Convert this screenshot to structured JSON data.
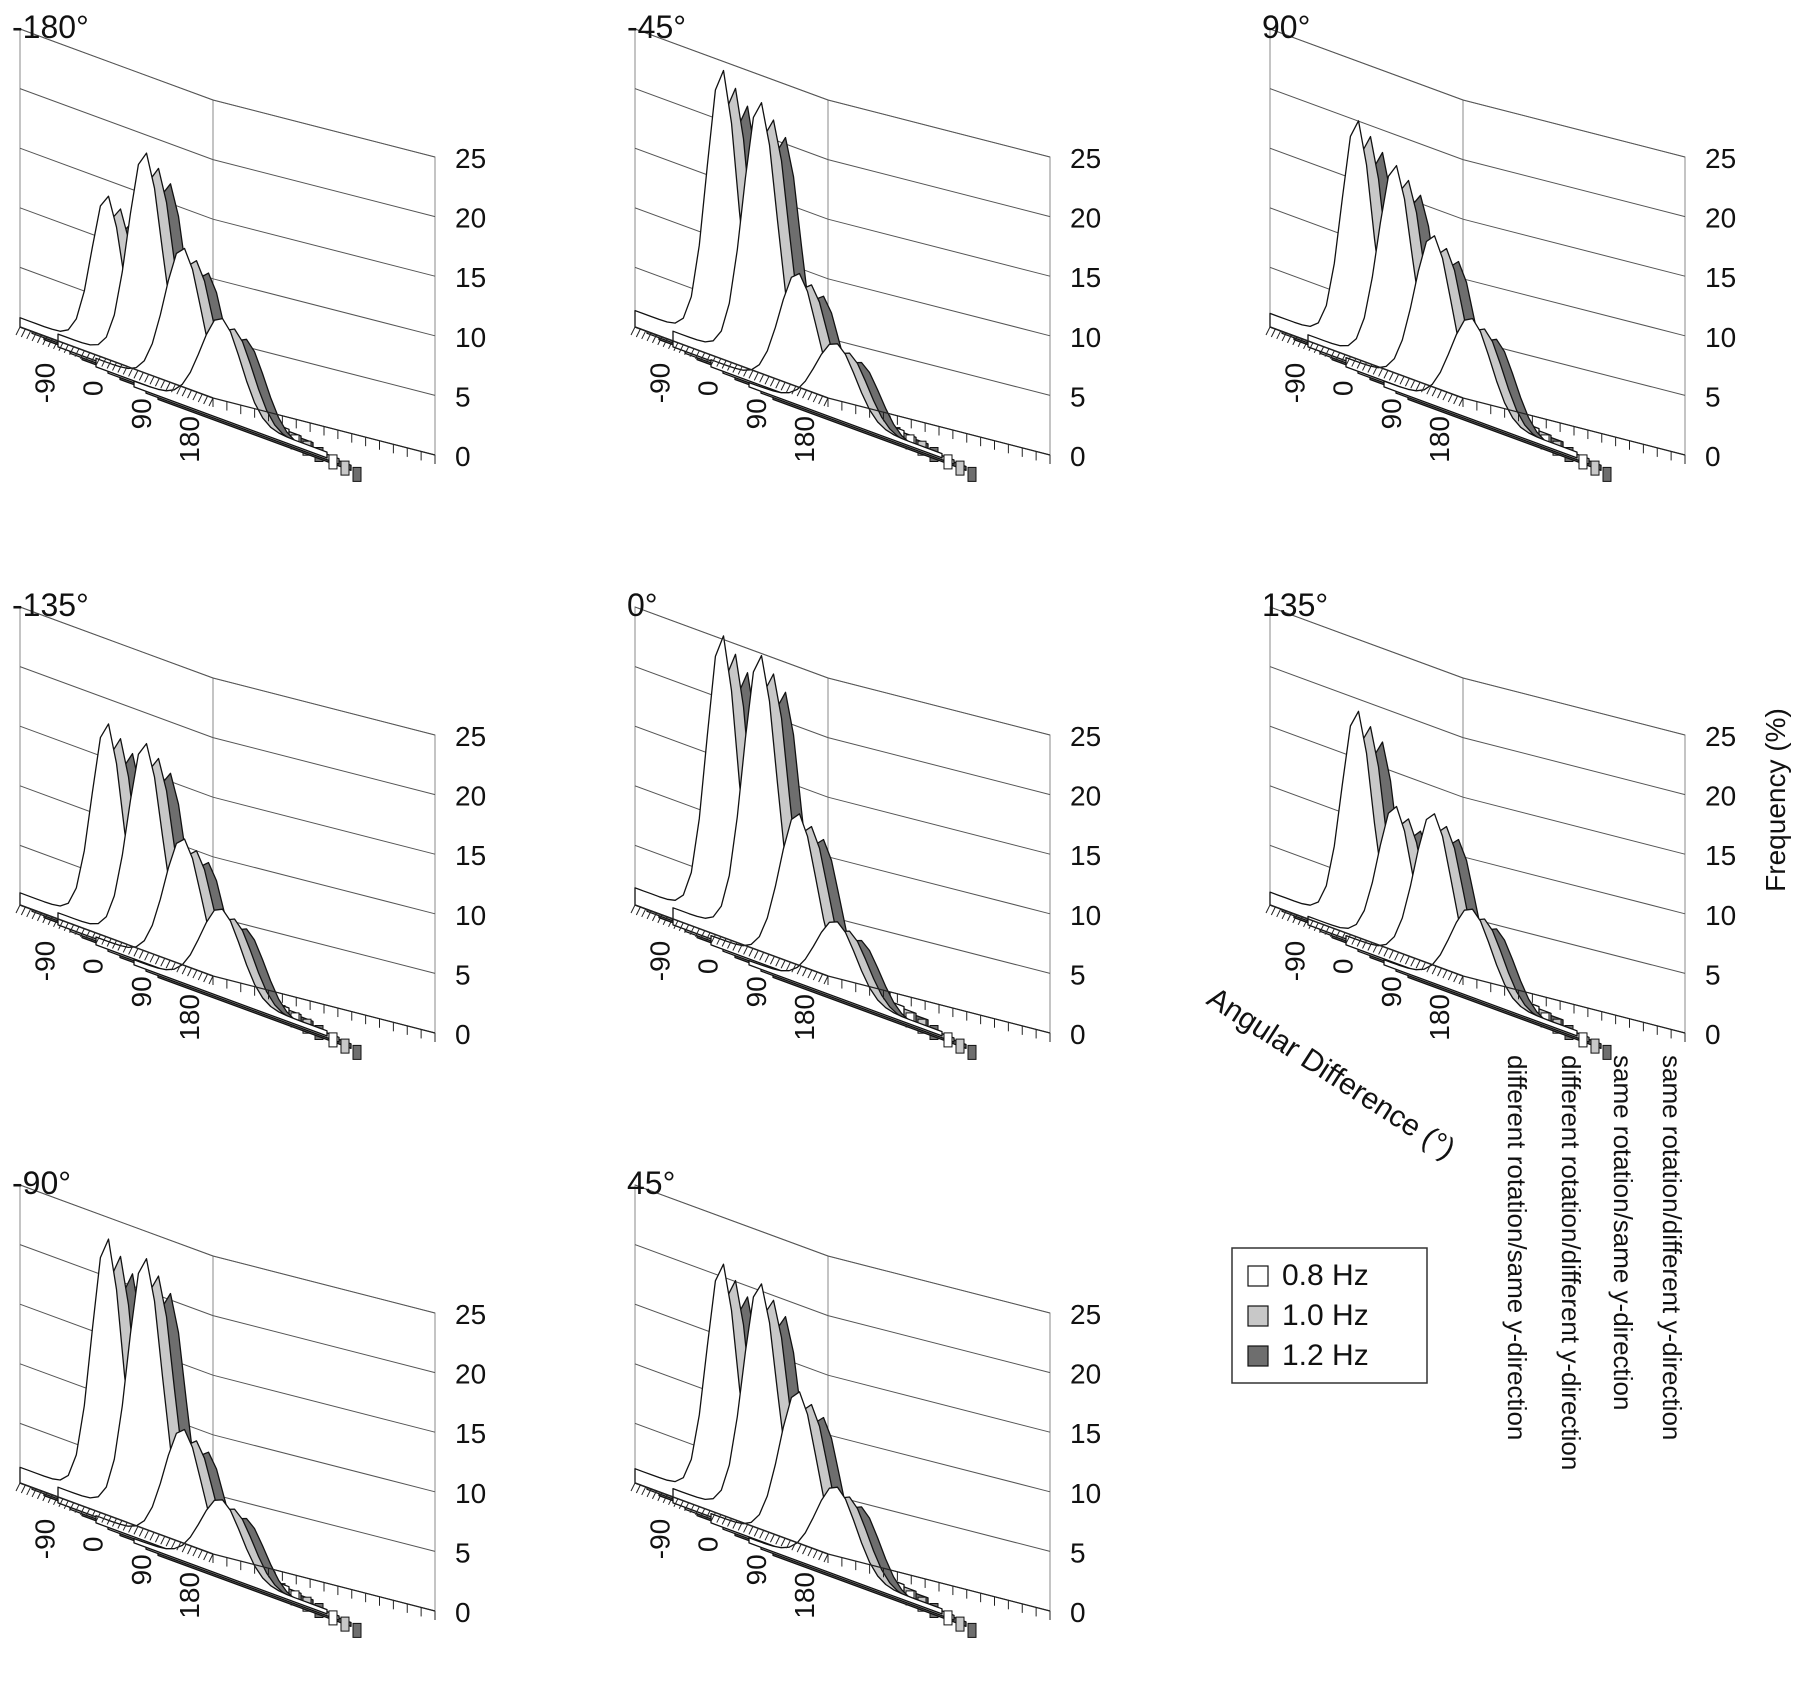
{
  "figure": {
    "angular_axis_label": "Angular Difference (°)",
    "frequency_axis_label": "Frequency (%)",
    "legend": [
      {
        "label": "0.8 Hz",
        "color": "#ffffff"
      },
      {
        "label": "1.0 Hz",
        "color": "#c8c8c8"
      },
      {
        "label": "1.2 Hz",
        "color": "#6e6e6e"
      }
    ]
  },
  "chart_data": [
    {
      "type": "area",
      "title": "-180°",
      "series_depth_labels": [
        "different rotation/same y-direction",
        "different rotation/different y-direction",
        "same rotation/same y-direction",
        "same rotation/different y-direction"
      ],
      "frequencies": [
        "0.8 Hz",
        "1.0 Hz",
        "1.2 Hz"
      ],
      "x": [
        -180,
        -135,
        -90,
        -45,
        0,
        45,
        90,
        135,
        180
      ],
      "x_ticks": [
        -90,
        0,
        90,
        180
      ],
      "z_ticks": [
        0,
        5,
        10,
        15,
        20,
        25
      ],
      "zlim": [
        0,
        25
      ],
      "peaks": [
        13,
        18,
        12,
        8
      ]
    },
    {
      "type": "area",
      "title": "-45°",
      "series_depth_labels": [
        "different rotation/same y-direction",
        "different rotation/different y-direction",
        "same rotation/same y-direction",
        "same rotation/different y-direction"
      ],
      "frequencies": [
        "0.8 Hz",
        "1.0 Hz",
        "1.2 Hz"
      ],
      "x": [
        -180,
        -135,
        -90,
        -45,
        0,
        45,
        90,
        135,
        180
      ],
      "x_ticks": [
        -90,
        0,
        90,
        180
      ],
      "z_ticks": [
        0,
        5,
        10,
        15,
        20,
        25
      ],
      "zlim": [
        0,
        25
      ],
      "peaks": [
        23,
        22,
        10,
        6
      ]
    },
    {
      "type": "area",
      "title": "90°",
      "series_depth_labels": [
        "different rotation/same y-direction",
        "different rotation/different y-direction",
        "same rotation/same y-direction",
        "same rotation/different y-direction"
      ],
      "frequencies": [
        "0.8 Hz",
        "1.0 Hz",
        "1.2 Hz"
      ],
      "x": [
        -180,
        -135,
        -90,
        -45,
        0,
        45,
        90,
        135,
        180
      ],
      "x_ticks": [
        -90,
        0,
        90,
        180
      ],
      "z_ticks": [
        0,
        5,
        10,
        15,
        20,
        25
      ],
      "zlim": [
        0,
        25
      ],
      "peaks": [
        19,
        17,
        13,
        8
      ]
    },
    {
      "type": "area",
      "title": "-135°",
      "series_depth_labels": [
        "different rotation/same y-direction",
        "different rotation/different y-direction",
        "same rotation/same y-direction",
        "same rotation/different y-direction"
      ],
      "frequencies": [
        "0.8 Hz",
        "1.0 Hz",
        "1.2 Hz"
      ],
      "x": [
        -180,
        -135,
        -90,
        -45,
        0,
        45,
        90,
        135,
        180
      ],
      "x_ticks": [
        -90,
        0,
        90,
        180
      ],
      "z_ticks": [
        0,
        5,
        10,
        15,
        20,
        25
      ],
      "zlim": [
        0,
        25
      ],
      "peaks": [
        17,
        17,
        11,
        7
      ]
    },
    {
      "type": "area",
      "title": "0°",
      "series_depth_labels": [
        "different rotation/same y-direction",
        "different rotation/different y-direction",
        "same rotation/same y-direction",
        "same rotation/different y-direction"
      ],
      "frequencies": [
        "0.8 Hz",
        "1.0 Hz",
        "1.2 Hz"
      ],
      "x": [
        -180,
        -135,
        -90,
        -45,
        0,
        45,
        90,
        135,
        180
      ],
      "x_ticks": [
        -90,
        0,
        90,
        180
      ],
      "z_ticks": [
        0,
        5,
        10,
        15,
        20,
        25
      ],
      "zlim": [
        0,
        25
      ],
      "peaks": [
        24,
        24,
        13,
        6
      ]
    },
    {
      "type": "area",
      "title": "135°",
      "series_depth_labels": [
        "different rotation/same y-direction",
        "different rotation/different y-direction",
        "same rotation/same y-direction",
        "same rotation/different y-direction"
      ],
      "frequencies": [
        "0.8 Hz",
        "1.0 Hz",
        "1.2 Hz"
      ],
      "x": [
        -180,
        -135,
        -90,
        -45,
        0,
        45,
        90,
        135,
        180
      ],
      "x_ticks": [
        -90,
        0,
        90,
        180
      ],
      "z_ticks": [
        0,
        5,
        10,
        15,
        20,
        25
      ],
      "zlim": [
        0,
        25
      ],
      "peaks": [
        18,
        12,
        13,
        7
      ]
    },
    {
      "type": "area",
      "title": "-90°",
      "series_depth_labels": [
        "different rotation/same y-direction",
        "different rotation/different y-direction",
        "same rotation/same y-direction",
        "same rotation/different y-direction"
      ],
      "frequencies": [
        "0.8 Hz",
        "1.0 Hz",
        "1.2 Hz"
      ],
      "x": [
        -180,
        -135,
        -90,
        -45,
        0,
        45,
        90,
        135,
        180
      ],
      "x_ticks": [
        -90,
        0,
        90,
        180
      ],
      "z_ticks": [
        0,
        5,
        10,
        15,
        20,
        25
      ],
      "zlim": [
        0,
        25
      ],
      "peaks": [
        22,
        22,
        10,
        6
      ]
    },
    {
      "type": "area",
      "title": "45°",
      "series_depth_labels": [
        "different rotation/same y-direction",
        "different rotation/different y-direction",
        "same rotation/same y-direction",
        "same rotation/different y-direction"
      ],
      "frequencies": [
        "0.8 Hz",
        "1.0 Hz",
        "1.2 Hz"
      ],
      "x": [
        -180,
        -135,
        -90,
        -45,
        0,
        45,
        90,
        135,
        180
      ],
      "x_ticks": [
        -90,
        0,
        90,
        180
      ],
      "z_ticks": [
        0,
        5,
        10,
        15,
        20,
        25
      ],
      "zlim": [
        0,
        25
      ],
      "peaks": [
        20,
        20,
        13,
        7
      ]
    }
  ]
}
